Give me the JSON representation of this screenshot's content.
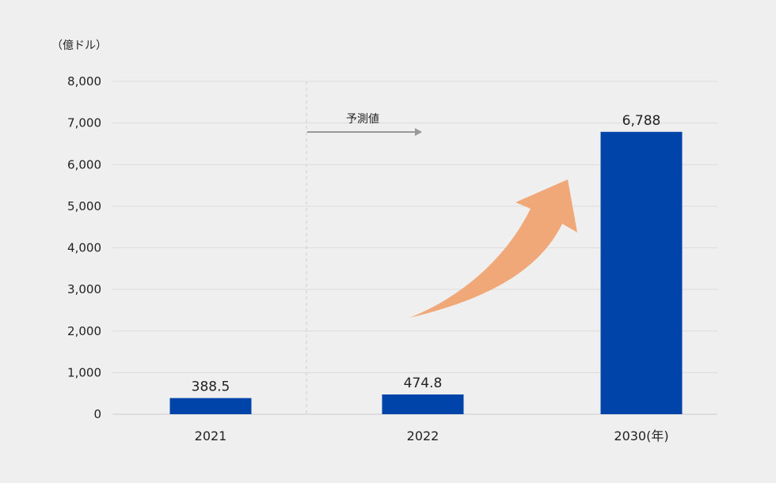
{
  "chart_data": {
    "type": "bar",
    "categories": [
      "2021",
      "2022",
      "2030(年)"
    ],
    "values": [
      388.5,
      474.8,
      6788
    ],
    "data_labels": [
      "388.5",
      "474.8",
      "6,788"
    ],
    "ylabel": "（億ドル）",
    "ylim": [
      0,
      8000
    ],
    "yticks": [
      0,
      1000,
      2000,
      3000,
      4000,
      5000,
      6000,
      7000,
      8000
    ],
    "ytick_labels": [
      "0",
      "1,000",
      "2,000",
      "3,000",
      "4,000",
      "5,000",
      "6,000",
      "7,000",
      "8,000"
    ],
    "annotations": [
      "予測値"
    ],
    "grid": true,
    "bar_color": "#0044aa",
    "arrow_color": "#f0a878"
  }
}
